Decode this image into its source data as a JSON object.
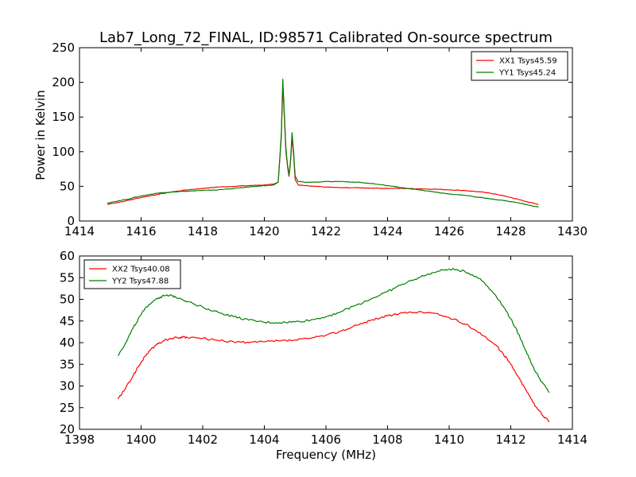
{
  "chart_data": [
    {
      "type": "line",
      "title": "Lab7_Long_72_FINAL, ID:98571 Calibrated On-source spectrum",
      "xlabel": "",
      "ylabel": "Power in Kelvin",
      "xlim": [
        1414,
        1430
      ],
      "ylim": [
        0,
        250
      ],
      "xticks": [
        "1414",
        "1416",
        "1418",
        "1420",
        "1422",
        "1424",
        "1426",
        "1428",
        "1430"
      ],
      "yticks": [
        "0",
        "50",
        "100",
        "150",
        "200",
        "250"
      ],
      "legend_position": "top-right",
      "grid": false,
      "series": [
        {
          "name": "XX1 Tsys45.59",
          "color": "#ff0000",
          "x": [
            1414.9,
            1415.5,
            1416,
            1416.5,
            1417,
            1417.5,
            1418,
            1418.5,
            1419,
            1419.5,
            1420,
            1420.3,
            1420.45,
            1420.55,
            1420.6,
            1420.65,
            1420.7,
            1420.75,
            1420.8,
            1420.85,
            1420.9,
            1420.95,
            1421.0,
            1421.1,
            1421.3,
            1421.6,
            1422,
            1422.5,
            1423,
            1423.5,
            1424,
            1424.5,
            1425,
            1425.5,
            1426,
            1426.5,
            1427,
            1427.5,
            1428,
            1428.5,
            1428.9
          ],
          "values": [
            24,
            29,
            34,
            38,
            42,
            45,
            47,
            49,
            50,
            51,
            52,
            53,
            56,
            120,
            195,
            150,
            100,
            80,
            64,
            85,
            120,
            95,
            60,
            52,
            51,
            50,
            49,
            48,
            48,
            47.5,
            47,
            47,
            46.5,
            46,
            45,
            44,
            42,
            39,
            34,
            28,
            24
          ]
        },
        {
          "name": "YY1 Tsys45.24",
          "color": "#008000",
          "x": [
            1414.9,
            1415.5,
            1416,
            1416.5,
            1417,
            1417.5,
            1418,
            1418.5,
            1419,
            1419.5,
            1420,
            1420.3,
            1420.45,
            1420.55,
            1420.6,
            1420.65,
            1420.7,
            1420.75,
            1420.8,
            1420.85,
            1420.9,
            1420.95,
            1421.0,
            1421.1,
            1421.3,
            1421.6,
            1422,
            1422.5,
            1423,
            1423.5,
            1424,
            1424.5,
            1425,
            1425.5,
            1426,
            1426.5,
            1427,
            1427.5,
            1428,
            1428.5,
            1428.9
          ],
          "values": [
            26,
            31,
            36,
            40,
            42,
            43,
            44,
            45,
            47,
            49,
            51,
            52,
            56,
            125,
            205,
            155,
            105,
            82,
            66,
            88,
            128,
            100,
            65,
            57,
            56,
            56,
            57,
            57,
            56,
            54,
            51,
            48,
            45,
            42,
            39,
            37,
            34,
            31,
            28,
            24,
            20
          ]
        }
      ]
    },
    {
      "type": "line",
      "title": "",
      "xlabel": "Frequency (MHz)",
      "ylabel": "",
      "xlim": [
        1398,
        1414
      ],
      "ylim": [
        20,
        60
      ],
      "xticks": [
        "1398",
        "1400",
        "1402",
        "1404",
        "1406",
        "1408",
        "1410",
        "1412",
        "1414"
      ],
      "yticks": [
        "20",
        "25",
        "30",
        "35",
        "40",
        "45",
        "50",
        "55",
        "60"
      ],
      "legend_position": "top-left",
      "grid": false,
      "series": [
        {
          "name": "XX2 Tsys40.08",
          "color": "#ff0000",
          "x": [
            1399.25,
            1399.5,
            1399.75,
            1400,
            1400.25,
            1400.5,
            1400.75,
            1401,
            1401.25,
            1401.5,
            1402,
            1402.5,
            1403,
            1403.5,
            1404,
            1404.5,
            1405,
            1405.5,
            1406,
            1406.5,
            1407,
            1407.5,
            1408,
            1408.5,
            1409,
            1409.5,
            1410,
            1410.5,
            1411,
            1411.5,
            1411.75,
            1412,
            1412.25,
            1412.5,
            1412.75,
            1413,
            1413.25
          ],
          "values": [
            27,
            29.5,
            32.5,
            35.5,
            38,
            39.5,
            40.5,
            41,
            41.2,
            41.2,
            41,
            40.5,
            40.2,
            40,
            40.2,
            40.4,
            40.6,
            41,
            41.7,
            42.7,
            44,
            45.3,
            46.2,
            46.8,
            47.1,
            46.8,
            45.8,
            44.3,
            42.3,
            39.5,
            37.5,
            35,
            32,
            29,
            26,
            23.5,
            21.7
          ]
        },
        {
          "name": "YY2 Tsys47.88",
          "color": "#008000",
          "x": [
            1399.25,
            1399.5,
            1399.75,
            1400,
            1400.25,
            1400.5,
            1400.75,
            1401,
            1401.25,
            1401.5,
            1402,
            1402.5,
            1403,
            1403.5,
            1404,
            1404.5,
            1405,
            1405.5,
            1406,
            1406.5,
            1407,
            1407.5,
            1408,
            1408.5,
            1409,
            1409.5,
            1410,
            1410.5,
            1411,
            1411.5,
            1411.75,
            1412,
            1412.25,
            1412.5,
            1412.75,
            1413,
            1413.25
          ],
          "values": [
            37,
            40,
            43.5,
            46.5,
            48.8,
            50.2,
            50.8,
            50.8,
            50.3,
            49.5,
            48.2,
            47,
            46,
            45.2,
            44.7,
            44.6,
            44.8,
            45.2,
            46,
            47.2,
            48.7,
            50.2,
            51.8,
            53.5,
            55,
            56.2,
            57,
            56.5,
            54.8,
            51,
            48.5,
            45.5,
            42,
            38,
            34,
            31,
            28.5
          ]
        }
      ]
    }
  ]
}
